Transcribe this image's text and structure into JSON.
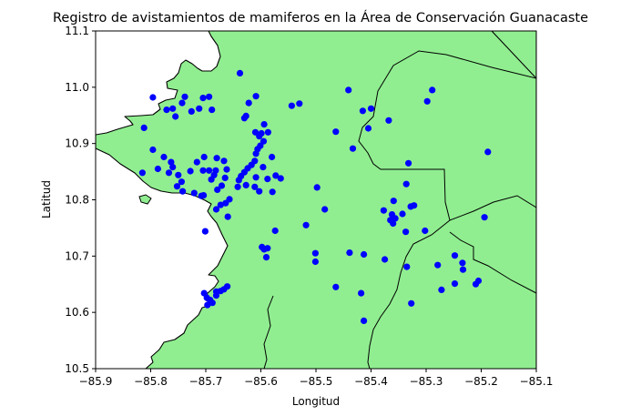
{
  "chart_data": {
    "type": "scatter",
    "title": "Registro de avistamientos de mamiferos en la Área de Conservación Guanacaste",
    "xlabel": "Longitud",
    "ylabel": "Latitud",
    "xlim": [
      -85.9,
      -85.1
    ],
    "ylim": [
      10.5,
      11.1
    ],
    "xticks": [
      -85.9,
      -85.8,
      -85.7,
      -85.6,
      -85.5,
      -85.4,
      -85.3,
      -85.2,
      -85.1
    ],
    "yticks": [
      10.5,
      10.6,
      10.7,
      10.8,
      10.9,
      11.0,
      11.1
    ],
    "xtick_labels": [
      "−85.9",
      "−85.8",
      "−85.7",
      "−85.6",
      "−85.5",
      "−85.4",
      "−85.3",
      "−85.2",
      "−85.1"
    ],
    "ytick_labels": [
      "10.5",
      "10.6",
      "10.7",
      "10.8",
      "10.9",
      "11.0",
      "11.1"
    ],
    "point_color": "#0000ff",
    "land_color": "#90ee90",
    "grid": false,
    "points": [
      [
        -85.796,
        10.982
      ],
      [
        -85.771,
        10.96
      ],
      [
        -85.76,
        10.962
      ],
      [
        -85.755,
        10.948
      ],
      [
        -85.743,
        10.972
      ],
      [
        -85.738,
        10.983
      ],
      [
        -85.726,
        10.957
      ],
      [
        -85.712,
        10.962
      ],
      [
        -85.705,
        10.981
      ],
      [
        -85.694,
        10.983
      ],
      [
        -85.689,
        10.96
      ],
      [
        -85.638,
        11.025
      ],
      [
        -85.622,
        10.972
      ],
      [
        -85.609,
        10.984
      ],
      [
        -85.627,
        10.949
      ],
      [
        -85.63,
        10.945
      ],
      [
        -85.812,
        10.928
      ],
      [
        -85.796,
        10.889
      ],
      [
        -85.815,
        10.848
      ],
      [
        -85.787,
        10.855
      ],
      [
        -85.776,
        10.876
      ],
      [
        -85.763,
        10.867
      ],
      [
        -85.76,
        10.858
      ],
      [
        -85.767,
        10.848
      ],
      [
        -85.75,
        10.844
      ],
      [
        -85.744,
        10.832
      ],
      [
        -85.752,
        10.824
      ],
      [
        -85.742,
        10.815
      ],
      [
        -85.721,
        10.812
      ],
      [
        -85.708,
        10.807
      ],
      [
        -85.704,
        10.808
      ],
      [
        -85.728,
        10.851
      ],
      [
        -85.716,
        10.867
      ],
      [
        -85.703,
        10.876
      ],
      [
        -85.705,
        10.852
      ],
      [
        -85.694,
        10.852
      ],
      [
        -85.69,
        10.836
      ],
      [
        -85.685,
        10.844
      ],
      [
        -85.682,
        10.852
      ],
      [
        -85.68,
        10.874
      ],
      [
        -85.667,
        10.869
      ],
      [
        -85.662,
        10.854
      ],
      [
        -85.665,
        10.839
      ],
      [
        -85.671,
        10.825
      ],
      [
        -85.679,
        10.818
      ],
      [
        -85.681,
        10.783
      ],
      [
        -85.673,
        10.791
      ],
      [
        -85.664,
        10.794
      ],
      [
        -85.657,
        10.801
      ],
      [
        -85.66,
        10.77
      ],
      [
        -85.701,
        10.744
      ],
      [
        -85.642,
        10.823
      ],
      [
        -85.64,
        10.835
      ],
      [
        -85.636,
        10.842
      ],
      [
        -85.63,
        10.849
      ],
      [
        -85.624,
        10.856
      ],
      [
        -85.617,
        10.862
      ],
      [
        -85.611,
        10.869
      ],
      [
        -85.609,
        10.882
      ],
      [
        -85.606,
        10.89
      ],
      [
        -85.601,
        10.896
      ],
      [
        -85.595,
        10.904
      ],
      [
        -85.603,
        10.913
      ],
      [
        -85.599,
        10.918
      ],
      [
        -85.61,
        10.92
      ],
      [
        -85.594,
        10.934
      ],
      [
        -85.587,
        10.92
      ],
      [
        -85.58,
        10.876
      ],
      [
        -85.596,
        10.858
      ],
      [
        -85.609,
        10.84
      ],
      [
        -85.611,
        10.823
      ],
      [
        -85.627,
        10.826
      ],
      [
        -85.603,
        10.815
      ],
      [
        -85.588,
        10.837
      ],
      [
        -85.573,
        10.843
      ],
      [
        -85.564,
        10.838
      ],
      [
        -85.579,
        10.814
      ],
      [
        -85.594,
        10.712
      ],
      [
        -85.598,
        10.716
      ],
      [
        -85.59,
        10.698
      ],
      [
        -85.588,
        10.714
      ],
      [
        -85.574,
        10.745
      ],
      [
        -85.703,
        10.634
      ],
      [
        -85.698,
        10.626
      ],
      [
        -85.692,
        10.622
      ],
      [
        -85.688,
        10.617
      ],
      [
        -85.681,
        10.63
      ],
      [
        -85.673,
        10.638
      ],
      [
        -85.667,
        10.641
      ],
      [
        -85.661,
        10.646
      ],
      [
        -85.697,
        10.613
      ],
      [
        -85.681,
        10.637
      ],
      [
        -85.544,
        10.967
      ],
      [
        -85.53,
        10.971
      ],
      [
        -85.441,
        10.995
      ],
      [
        -85.464,
        10.921
      ],
      [
        -85.433,
        10.891
      ],
      [
        -85.415,
        10.958
      ],
      [
        -85.4,
        10.962
      ],
      [
        -85.405,
        10.927
      ],
      [
        -85.368,
        10.941
      ],
      [
        -85.289,
        10.995
      ],
      [
        -85.298,
        10.975
      ],
      [
        -85.188,
        10.885
      ],
      [
        -85.332,
        10.865
      ],
      [
        -85.336,
        10.828
      ],
      [
        -85.359,
        10.798
      ],
      [
        -85.343,
        10.775
      ],
      [
        -85.362,
        10.774
      ],
      [
        -85.356,
        10.767
      ],
      [
        -85.365,
        10.764
      ],
      [
        -85.36,
        10.758
      ],
      [
        -85.328,
        10.788
      ],
      [
        -85.322,
        10.79
      ],
      [
        -85.302,
        10.745
      ],
      [
        -85.377,
        10.781
      ],
      [
        -85.337,
        10.743
      ],
      [
        -85.498,
        10.822
      ],
      [
        -85.484,
        10.783
      ],
      [
        -85.518,
        10.755
      ],
      [
        -85.501,
        10.705
      ],
      [
        -85.501,
        10.69
      ],
      [
        -85.439,
        10.706
      ],
      [
        -85.464,
        10.645
      ],
      [
        -85.413,
        10.703
      ],
      [
        -85.375,
        10.694
      ],
      [
        -85.335,
        10.681
      ],
      [
        -85.327,
        10.616
      ],
      [
        -85.418,
        10.634
      ],
      [
        -85.413,
        10.585
      ],
      [
        -85.279,
        10.684
      ],
      [
        -85.272,
        10.64
      ],
      [
        -85.248,
        10.701
      ],
      [
        -85.234,
        10.688
      ],
      [
        -85.233,
        10.676
      ],
      [
        -85.248,
        10.651
      ],
      [
        -85.21,
        10.65
      ],
      [
        -85.205,
        10.656
      ],
      [
        -85.194,
        10.769
      ]
    ]
  }
}
